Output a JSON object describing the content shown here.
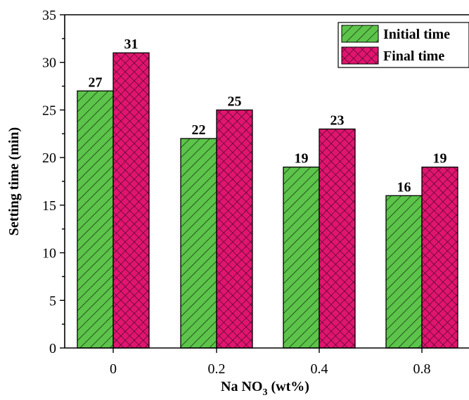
{
  "chart_data": {
    "type": "bar",
    "categories": [
      "0",
      "0.2",
      "0.4",
      "0.8"
    ],
    "series": [
      {
        "name": "Initial time",
        "values": [
          27,
          22,
          19,
          16
        ],
        "color": "#5cc44a",
        "pattern": "diagonal-hatch"
      },
      {
        "name": "Final time",
        "values": [
          31,
          25,
          23,
          19
        ],
        "color": "#e0156f",
        "pattern": "crosshatch"
      }
    ],
    "data_labels": [
      [
        "27",
        "22",
        "19",
        "16"
      ],
      [
        "31",
        "25",
        "23",
        "19"
      ]
    ],
    "xlabel_parts": {
      "main": "Na NO",
      "sub": "3",
      "tail": " (wt%)"
    },
    "ylabel": "Setting time (min)",
    "ylim": [
      0,
      35
    ],
    "yticks": [
      0,
      5,
      10,
      15,
      20,
      25,
      30,
      35
    ],
    "ytick_labels": [
      "0",
      "5",
      "10",
      "15",
      "20",
      "25",
      "30",
      "35"
    ],
    "grid": false,
    "legend_position": "top-right"
  }
}
